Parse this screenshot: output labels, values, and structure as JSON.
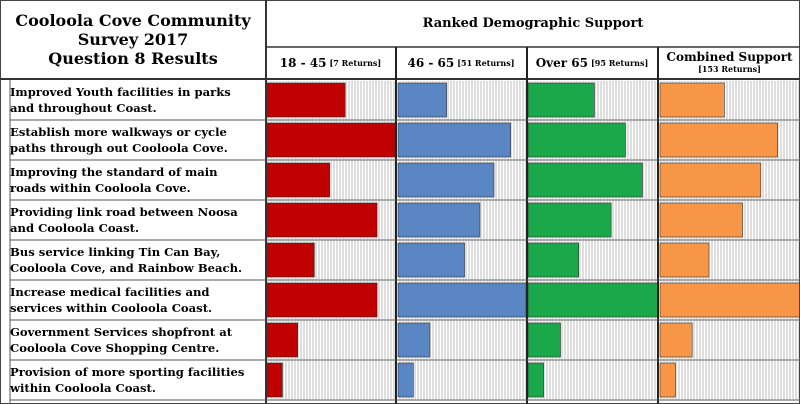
{
  "title_lines": [
    "Cooloola Cove Community",
    "Survey 2017",
    "Question 8 Results"
  ],
  "header": "Ranked Demographic Support",
  "columns": [
    {
      "label": "18 - 45",
      "returns": "[7 Returns]"
    },
    {
      "label": "46 - 65",
      "returns": "[51 Returns]"
    },
    {
      "label": "Over 65",
      "returns": "[95 Returns]"
    },
    {
      "label": "Combined Support",
      "returns": "[153 Returns]"
    }
  ],
  "rows": [
    [
      "Improved Youth facilities in parks",
      "and throughout Coast."
    ],
    [
      "Establish more walkways or cycle",
      "paths through out Cooloola Cove."
    ],
    [
      "Improving the standard of main",
      "roads within Cooloola Cove."
    ],
    [
      "Providing link road between Noosa",
      "and Cooloola Coast."
    ],
    [
      "Bus service linking Tin Can Bay,",
      "Cooloola Cove, and Rainbow Beach."
    ],
    [
      "Increase medical facilities and",
      "services within Cooloola Coast."
    ],
    [
      "Government Services shopfront at",
      "Cooloola Cove Shopping Centre."
    ],
    [
      "Provision of more sporting facilities",
      "within Cooloola Coast."
    ]
  ],
  "colors": {
    "c1": "#c00000",
    "c2": "#5b86c4",
    "c3": "#1aa84a",
    "c4": "#f79646",
    "stripe": "#bdbdbd"
  },
  "chart_data": {
    "type": "bar",
    "categories": [
      "Improved Youth facilities in parks and throughout Coast.",
      "Establish more walkways or cycle paths through out Cooloola Cove.",
      "Improving the standard of main roads within Cooloola Cove.",
      "Providing link road between Noosa and Cooloola Coast.",
      "Bus service linking Tin Can Bay, Cooloola Cove, and Rainbow Beach.",
      "Increase medical facilities and services within Cooloola Coast.",
      "Government Services shopfront at Cooloola Cove Shopping Centre.",
      "Provision of more sporting facilities within Cooloola Coast."
    ],
    "series": [
      {
        "name": "18 - 45 [7 Returns]",
        "values": [
          0.61,
          1.0,
          0.49,
          0.86,
          0.37,
          0.86,
          0.24,
          0.12
        ]
      },
      {
        "name": "46 - 65 [51 Returns]",
        "values": [
          0.38,
          0.88,
          0.75,
          0.64,
          0.52,
          1.0,
          0.25,
          0.12
        ]
      },
      {
        "name": "Over 65 [95 Returns]",
        "values": [
          0.51,
          0.75,
          0.88,
          0.64,
          0.39,
          1.0,
          0.25,
          0.12
        ]
      },
      {
        "name": "Combined Support [153 Returns]",
        "values": [
          0.46,
          0.84,
          0.72,
          0.59,
          0.35,
          1.0,
          0.23,
          0.11
        ]
      }
    ],
    "ylim": [
      0,
      1
    ]
  }
}
